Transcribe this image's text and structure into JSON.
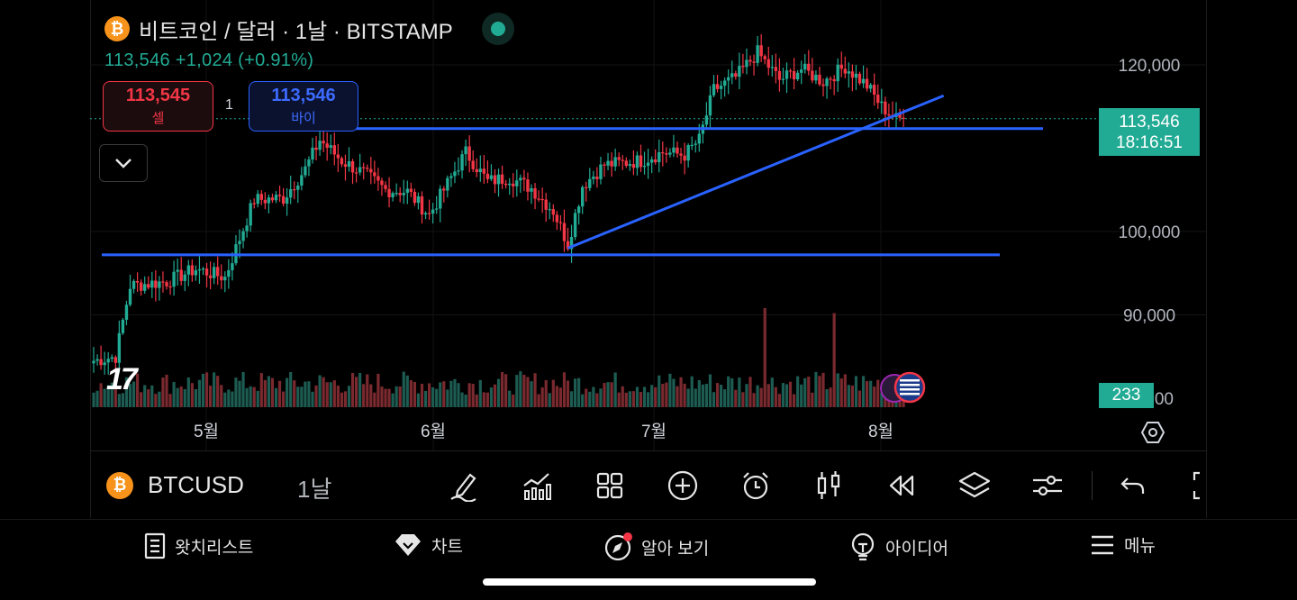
{
  "header": {
    "title": "비트코인 / 달러 · 1날 · BITSTAMP",
    "quote": "113,546  +1,024 (+0.91%)"
  },
  "trade": {
    "sell_price": "113,545",
    "sell_label": "셀",
    "spread": "1",
    "buy_price": "113,546",
    "buy_label": "바이"
  },
  "price_axis": {
    "labels": [
      "120,000",
      "100,000",
      "90,000"
    ],
    "current_price": "113,546",
    "countdown": "18:16:51",
    "volume_label": "233",
    "partial_label": "00"
  },
  "time_axis": {
    "labels": [
      "5월",
      "6월",
      "7월",
      "8월"
    ]
  },
  "logo_text": "17",
  "toolbar": {
    "symbol": "BTCUSD",
    "timeframe": "1날",
    "icons": [
      "draw-icon",
      "indicator-icon",
      "layout-icon",
      "add-icon",
      "alert-icon",
      "candle-type-icon",
      "replay-icon",
      "layers-icon",
      "settings-sliders-icon",
      "undo-icon",
      "fullscreen-icon"
    ]
  },
  "nav": {
    "items": [
      {
        "label": "왓치리스트",
        "icon": "watchlist-icon"
      },
      {
        "label": "차트",
        "icon": "chart-icon"
      },
      {
        "label": "알아 보기",
        "icon": "explore-icon"
      },
      {
        "label": "아이디어",
        "icon": "ideas-icon"
      },
      {
        "label": "메뉴",
        "icon": "menu-icon"
      }
    ]
  },
  "colors": {
    "up": "#22ab94",
    "down": "#f23645",
    "trendline": "#2962ff",
    "accent": "#22ab94",
    "coin": "#f7931a"
  },
  "chart_data": {
    "type": "candlestick",
    "y_axis_ticks": [
      90000,
      100000,
      120000
    ],
    "ylim": [
      84000,
      126000
    ],
    "x_axis_labels": [
      "5월",
      "6월",
      "7월",
      "8월"
    ],
    "last_close": 113546,
    "change": 1024,
    "change_pct": 0.91,
    "keypoints_close": [
      [
        0,
        84500
      ],
      [
        6,
        85000
      ],
      [
        10,
        93500
      ],
      [
        20,
        94000
      ],
      [
        28,
        95500
      ],
      [
        36,
        94500
      ],
      [
        44,
        103800
      ],
      [
        52,
        104000
      ],
      [
        58,
        107500
      ],
      [
        62,
        111000
      ],
      [
        68,
        108500
      ],
      [
        74,
        107000
      ],
      [
        80,
        105000
      ],
      [
        86,
        104800
      ],
      [
        92,
        102000
      ],
      [
        96,
        105000
      ],
      [
        102,
        109500
      ],
      [
        108,
        106000
      ],
      [
        114,
        106500
      ],
      [
        120,
        105200
      ],
      [
        126,
        102500
      ],
      [
        130,
        98500
      ],
      [
        134,
        105500
      ],
      [
        140,
        108000
      ],
      [
        150,
        108500
      ],
      [
        156,
        109500
      ],
      [
        162,
        109200
      ],
      [
        166,
        111000
      ],
      [
        170,
        117000
      ],
      [
        176,
        118500
      ],
      [
        182,
        121500
      ],
      [
        188,
        118200
      ],
      [
        194,
        119500
      ],
      [
        200,
        118000
      ],
      [
        206,
        119800
      ],
      [
        212,
        117500
      ],
      [
        216,
        115000
      ],
      [
        220,
        113500
      ],
      [
        222,
        113546
      ]
    ],
    "horizontal_lines": [
      112350,
      97200
    ],
    "trendline": {
      "from": [
        130,
        98000
      ],
      "to": [
        233,
        116300
      ]
    },
    "volume_spikes": [
      {
        "index": 184,
        "relative": 1.0
      },
      {
        "index": 203,
        "relative": 0.95
      }
    ]
  }
}
